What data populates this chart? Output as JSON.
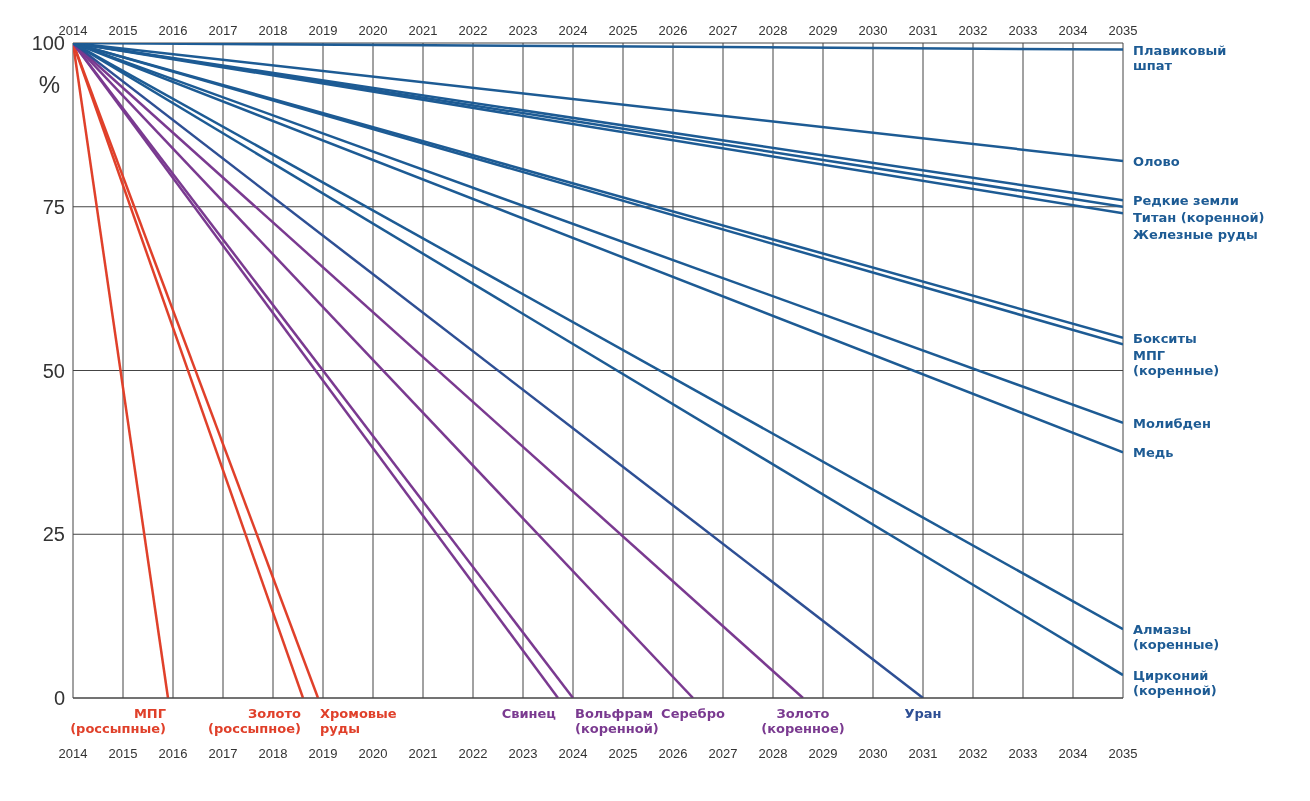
{
  "chart_data": {
    "type": "line",
    "ylabel": "%",
    "xlim": [
      2014,
      2035
    ],
    "xticks": [
      2014,
      2015,
      2016,
      2017,
      2018,
      2019,
      2020,
      2021,
      2022,
      2023,
      2024,
      2025,
      2026,
      2027,
      2028,
      2029,
      2030,
      2031,
      2032,
      2033,
      2034,
      2035
    ],
    "x2lim": [
      2014,
      2035
    ],
    "x2ticks": [
      2014,
      2015,
      2016,
      2017,
      2018,
      2019,
      2020,
      2021,
      2022,
      2023,
      2024,
      2025,
      2026,
      2027,
      2028,
      2029,
      2030,
      2031,
      2032,
      2033,
      2034,
      2035
    ],
    "ylim": [
      0,
      100
    ],
    "yticks": [
      0,
      25,
      50,
      75,
      100
    ],
    "grid": true,
    "series": [
      {
        "name": "МПГ\n(россыпные)",
        "color": "#e0402a",
        "x": [
          2014,
          2015.9
        ],
        "values": [
          100,
          0
        ]
      },
      {
        "name": "Золото\n(россыпное)",
        "color": "#e0402a",
        "x": [
          2014,
          2018.6
        ],
        "values": [
          100,
          0
        ]
      },
      {
        "name": "Хромовые\nруды",
        "color": "#e0402a",
        "x": [
          2014,
          2018.9
        ],
        "values": [
          100,
          0
        ]
      },
      {
        "name": "Свинец",
        "color": "#7a3a90",
        "x": [
          2014,
          2023.7
        ],
        "values": [
          100,
          0
        ]
      },
      {
        "name": "Вольфрам\n(коренной)",
        "color": "#7a3a90",
        "x": [
          2014,
          2024
        ],
        "values": [
          100,
          0
        ]
      },
      {
        "name": "Серебро",
        "color": "#7a3a90",
        "x": [
          2014,
          2026.4
        ],
        "values": [
          100,
          0
        ]
      },
      {
        "name": "Золото\n(коренное)",
        "color": "#7a3a90",
        "x": [
          2014,
          2028.6
        ],
        "values": [
          100,
          0
        ]
      },
      {
        "name": "Уран",
        "color": "#2e4f94",
        "x": [
          2014,
          2031
        ],
        "values": [
          100,
          0
        ]
      },
      {
        "name": "Плавиковый\nшпат",
        "color": "#1d5b94",
        "x": [
          2014,
          2035
        ],
        "values": [
          100,
          99
        ]
      },
      {
        "name": "Олово",
        "color": "#1d5b94",
        "x": [
          2014,
          2035
        ],
        "values": [
          100,
          82
        ]
      },
      {
        "name": "Редкие земли",
        "color": "#1d5b94",
        "x": [
          2014,
          2035
        ],
        "values": [
          100,
          76
        ]
      },
      {
        "name": "Титан (коренной)",
        "color": "#1d5b94",
        "x": [
          2014,
          2035
        ],
        "values": [
          100,
          75
        ]
      },
      {
        "name": "Железные руды",
        "color": "#1d5b94",
        "x": [
          2014,
          2035
        ],
        "values": [
          100,
          74
        ]
      },
      {
        "name": "Бокситы",
        "color": "#1d5b94",
        "x": [
          2014,
          2035
        ],
        "values": [
          100,
          55
        ]
      },
      {
        "name": "МПГ\n(коренные)",
        "color": "#1d5b94",
        "x": [
          2014,
          2035
        ],
        "values": [
          100,
          54
        ]
      },
      {
        "name": "Молибден",
        "color": "#1d5b94",
        "x": [
          2014,
          2035
        ],
        "values": [
          100,
          42
        ]
      },
      {
        "name": "Медь",
        "color": "#1d5b94",
        "x": [
          2014,
          2035
        ],
        "values": [
          100,
          37.5
        ]
      },
      {
        "name": "Алмазы\n(коренные)",
        "color": "#1d5b94",
        "x": [
          2014,
          2035
        ],
        "values": [
          100,
          10.5
        ]
      },
      {
        "name": "Цирконий\n(коренной)",
        "color": "#1d5b94",
        "x": [
          2014,
          2035
        ],
        "values": [
          100,
          3.5
        ]
      }
    ]
  }
}
